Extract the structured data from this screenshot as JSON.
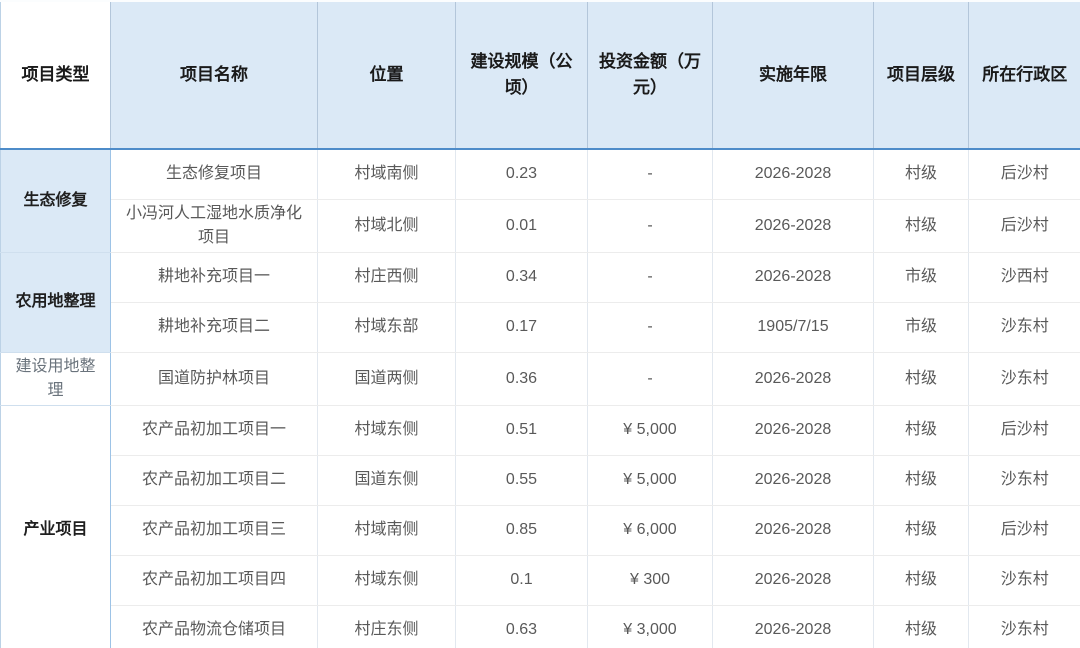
{
  "colors": {
    "header_bg": "#dbe9f6",
    "group_highlight_bg": "#dbe9f6",
    "header_accent_border": "#4e8cc9",
    "group_column_border": "#9dc3e6",
    "header_text": "#1a1a1a",
    "body_text": "#595959"
  },
  "table": {
    "headers": [
      "项目类型",
      "项目名称",
      "位置",
      "建设规模（公顷）",
      "投资金额（万元）",
      "实施年限",
      "项目层级",
      "所在行政区"
    ],
    "groups": [
      {
        "type": "生态修复",
        "highlighted": true,
        "bold": true,
        "rows": [
          {
            "name": "生态修复项目",
            "location": "村域南侧",
            "scale": "0.23",
            "investment": "-",
            "period": "2026-2028",
            "level": "村级",
            "district": "后沙村"
          },
          {
            "name": "小冯河人工湿地水质净化项目",
            "location": "村域北侧",
            "scale": "0.01",
            "investment": "-",
            "period": "2026-2028",
            "level": "村级",
            "district": "后沙村"
          }
        ]
      },
      {
        "type": "农用地整理",
        "highlighted": true,
        "bold": true,
        "rows": [
          {
            "name": "耕地补充项目一",
            "location": "村庄西侧",
            "scale": "0.34",
            "investment": "-",
            "period": "2026-2028",
            "level": "市级",
            "district": "沙西村"
          },
          {
            "name": "耕地补充项目二",
            "location": "村域东部",
            "scale": "0.17",
            "investment": "-",
            "period": "1905/7/15",
            "level": "市级",
            "district": "沙东村"
          }
        ]
      },
      {
        "type": "建设用地整理",
        "highlighted": false,
        "bold": false,
        "rows": [
          {
            "name": "国道防护林项目",
            "location": "国道两侧",
            "scale": "0.36",
            "investment": "-",
            "period": "2026-2028",
            "level": "村级",
            "district": "沙东村"
          }
        ]
      },
      {
        "type": "产业项目",
        "highlighted": false,
        "bold": true,
        "rows": [
          {
            "name": "农产品初加工项目一",
            "location": "村域东侧",
            "scale": "0.51",
            "investment": "¥ 5,000",
            "period": "2026-2028",
            "level": "村级",
            "district": "后沙村"
          },
          {
            "name": "农产品初加工项目二",
            "location": "国道东侧",
            "scale": "0.55",
            "investment": "¥ 5,000",
            "period": "2026-2028",
            "level": "村级",
            "district": "沙东村"
          },
          {
            "name": "农产品初加工项目三",
            "location": "村域南侧",
            "scale": "0.85",
            "investment": "¥ 6,000",
            "period": "2026-2028",
            "level": "村级",
            "district": "后沙村"
          },
          {
            "name": "农产品初加工项目四",
            "location": "村域东侧",
            "scale": "0.1",
            "investment": "¥ 300",
            "period": "2026-2028",
            "level": "村级",
            "district": "沙东村"
          },
          {
            "name": "农产品物流仓储项目",
            "location": "村庄东侧",
            "scale": "0.63",
            "investment": "¥ 3,000",
            "period": "2026-2028",
            "level": "村级",
            "district": "沙东村"
          }
        ]
      }
    ]
  }
}
